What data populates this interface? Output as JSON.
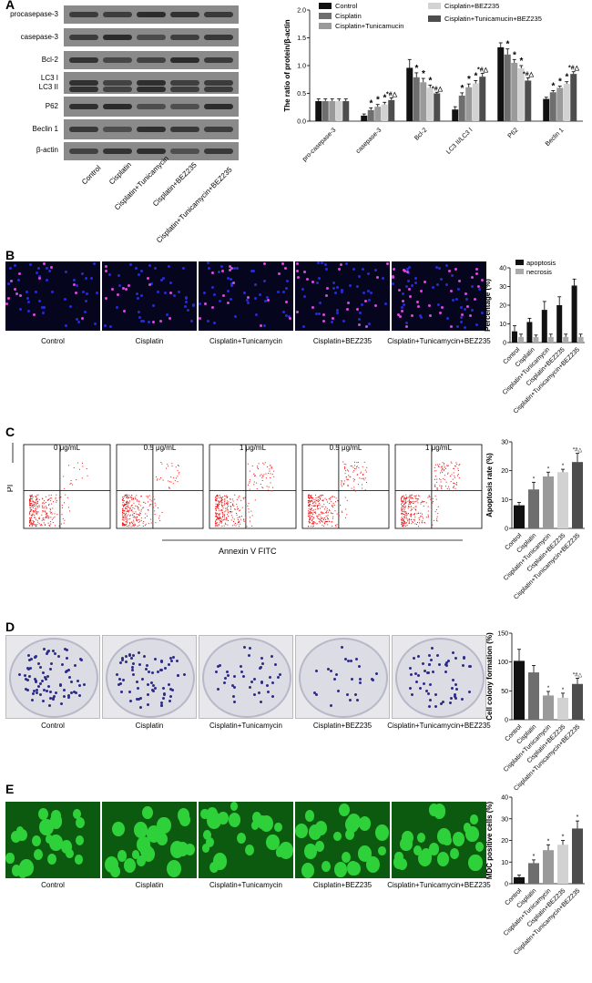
{
  "panelA": {
    "label": "A",
    "blot_rows": [
      "procasepase-3",
      "casepase-3",
      "Bcl-2",
      "LC3 I",
      "LC3 II",
      "P62",
      "Beclin 1",
      "β-actin"
    ],
    "blot_lanes": [
      "Control",
      "Cisplatin",
      "Cisplatin+Tunicamycin",
      "Cisplatin+BEZ235",
      "Cisplatin+Tunicamycin+BEZ235"
    ],
    "chart": {
      "ylabel": "The ratio of protein/β-actin",
      "yticks": [
        "0.0",
        "0.5",
        "1.0",
        "1.5",
        "2.0"
      ],
      "categories": [
        "pro-casepase-3",
        "casepase-3",
        "Bcl-2",
        "LC3 II/LC3 I",
        "P62",
        "Beclin 1"
      ],
      "legend": [
        "Control",
        "Cisplatin",
        "Cisplatin+Tunicamucin",
        "Cisplatin+BEZ235",
        "Cisplatin+Tunicamucin+BEZ235"
      ]
    }
  },
  "panelB": {
    "label": "B",
    "captions": [
      "Control",
      "Cisplatin",
      "Cisplatin+Tunicamycin",
      "Cisplatin+BEZ235",
      "Cisplatin+Tunicamycin+BEZ235"
    ],
    "chart": {
      "ylabel": "Percentage (%)",
      "yticks": [
        "0",
        "10",
        "20",
        "30",
        "40"
      ],
      "legend": [
        "apoptosis",
        "necrosis"
      ],
      "categories": [
        "Control",
        "Cisplatin",
        "Cisplatin+Tunicamycin",
        "Cisplatin+BEZ235",
        "Cisplatin+Tunicamycin+BEZ235"
      ]
    }
  },
  "panelC": {
    "label": "C",
    "doses": [
      "0 μg/mL",
      "0.5 μg/mL",
      "1 μg/mL",
      "0.5 μg/mL",
      "1 μg/mL"
    ],
    "yaxis": "PI",
    "xaxis": "Annexin V FITC",
    "chart": {
      "ylabel": "Apoptosis rate (%)",
      "yticks": [
        "0",
        "10",
        "20",
        "30"
      ],
      "categories": [
        "Control",
        "Cisplatin",
        "Cisplatin+Tunicamycin",
        "Cisplatin+BEZ235",
        "Cisplatin+Tunicamycin+BEZ235"
      ]
    }
  },
  "panelD": {
    "label": "D",
    "captions": [
      "Control",
      "Cisplatin",
      "Cisplatin+Tunicamycin",
      "Cisplatin+BEZ235",
      "Cisplatin+Tunicamycin+BEZ235"
    ],
    "chart": {
      "ylabel": "Cell colony formation (%)",
      "yticks": [
        "0",
        "50",
        "100",
        "150"
      ],
      "categories": [
        "Control",
        "Cisplatin",
        "Cisplatin+Tunicamycin",
        "Cisplatin+BEZ235",
        "Cisplatin+Tunicamycin+BEZ235"
      ]
    }
  },
  "panelE": {
    "label": "E",
    "captions": [
      "Control",
      "Cisplatin",
      "Cisplatin+Tunicamycin",
      "Cisplatin+BEZ235",
      "Cisplatin+Tunicamycin+BEZ235"
    ],
    "chart": {
      "ylabel": "MDC positive cells (%)",
      "yticks": [
        "0",
        "10",
        "20",
        "30",
        "40"
      ],
      "categories": [
        "Control",
        "Cisplatin",
        "Cisplatin+Tunicamycin",
        "Cisplatin+BEZ235",
        "Cisplatin+Tunicamycin+BEZ235"
      ]
    }
  },
  "colors": {
    "c1": "#111111",
    "c2": "#6e6e6e",
    "c3": "#9a9a9a",
    "c4": "#d2d2d2",
    "c5": "#4d4d4d"
  },
  "chart_data": [
    {
      "type": "bar",
      "categories": [
        "pro-casepase-3",
        "casepase-3",
        "Bcl-2",
        "LC3 II/LC3 I",
        "P62",
        "Beclin 1"
      ],
      "series": [
        {
          "name": "Control",
          "values": [
            0.36,
            0.1,
            0.96,
            0.21,
            1.33,
            0.4
          ],
          "errors": [
            0.04,
            0.03,
            0.15,
            0.05,
            0.08,
            0.03
          ]
        },
        {
          "name": "Cisplatin",
          "values": [
            0.36,
            0.2,
            0.79,
            0.46,
            1.2,
            0.52
          ],
          "errors": [
            0.04,
            0.04,
            0.08,
            0.05,
            0.1,
            0.03
          ]
        },
        {
          "name": "Cisplatin+Tunicamucin",
          "values": [
            0.36,
            0.26,
            0.7,
            0.61,
            1.05,
            0.6
          ],
          "errors": [
            0.04,
            0.04,
            0.07,
            0.06,
            0.06,
            0.03
          ]
        },
        {
          "name": "Cisplatin+BEZ235",
          "values": [
            0.36,
            0.3,
            0.6,
            0.68,
            0.95,
            0.67
          ],
          "errors": [
            0.04,
            0.04,
            0.05,
            0.05,
            0.05,
            0.04
          ]
        },
        {
          "name": "Cisplatin+Tunicamucin+BEZ235",
          "values": [
            0.36,
            0.38,
            0.5,
            0.8,
            0.73,
            0.85
          ],
          "errors": [
            0.04,
            0.04,
            0.02,
            0.06,
            0.05,
            0.04
          ]
        }
      ],
      "annotations": [
        [
          "",
          "",
          "",
          "",
          ""
        ],
        [
          "",
          "*",
          "*",
          "*",
          "*#△"
        ],
        [
          "",
          "*",
          "*",
          "*",
          "*#△"
        ],
        [
          "",
          "*",
          "*",
          "*",
          "*#△"
        ],
        [
          "",
          "*",
          "*",
          "*",
          "*#△"
        ],
        [
          "",
          "*",
          "*",
          "*",
          "*#△"
        ]
      ],
      "ylabel": "The ratio of protein/β-actin",
      "ylim": [
        0,
        2.0
      ],
      "legend": "top"
    },
    {
      "type": "bar",
      "categories": [
        "Control",
        "Cisplatin",
        "Cisplatin+Tunicamycin",
        "Cisplatin+BEZ235",
        "Cisplatin+Tunicamycin+BEZ235"
      ],
      "series": [
        {
          "name": "apoptosis",
          "values": [
            6,
            11,
            17.5,
            20,
            30.5
          ],
          "errors": [
            3,
            2,
            4.5,
            4.5,
            3.5
          ]
        },
        {
          "name": "necrosis",
          "values": [
            3,
            3,
            3,
            3,
            3
          ],
          "errors": [
            1.5,
            1,
            1.5,
            1.5,
            1.5
          ]
        }
      ],
      "ylabel": "Percentage (%)",
      "ylim": [
        0,
        40
      ],
      "legend": "top"
    },
    {
      "type": "bar",
      "categories": [
        "Control",
        "Cisplatin",
        "Cisplatin+Tunicamycin",
        "Cisplatin+BEZ235",
        "Cisplatin+Tunicamycin+BEZ235"
      ],
      "values": [
        8,
        13.5,
        18,
        19.5,
        23
      ],
      "errors": [
        1,
        2.5,
        1.5,
        1,
        3
      ],
      "annotations": [
        "",
        "*",
        "*",
        "*",
        "*#△"
      ],
      "ylabel": "Apoptosis rate (%)",
      "ylim": [
        0,
        30
      ]
    },
    {
      "type": "bar",
      "categories": [
        "Control",
        "Cisplatin",
        "Cisplatin+Tunicamycin",
        "Cisplatin+BEZ235",
        "Cisplatin+Tunicamycin+BEZ235"
      ],
      "values": [
        102,
        82,
        42,
        38,
        62
      ],
      "errors": [
        20,
        12,
        7,
        8,
        10
      ],
      "annotations": [
        "",
        "",
        "*",
        "*",
        "*#△"
      ],
      "ylabel": "Cell colony formation (%)",
      "ylim": [
        0,
        150
      ]
    },
    {
      "type": "bar",
      "categories": [
        "Control",
        "Cisplatin",
        "Cisplatin+Tunicamycin",
        "Cisplatin+BEZ235",
        "Cisplatin+Tunicamycin+BEZ235"
      ],
      "values": [
        3,
        9.5,
        15.5,
        18,
        25.5
      ],
      "errors": [
        1,
        1.5,
        2.5,
        2,
        3.5
      ],
      "annotations": [
        "",
        "*",
        "*",
        "*",
        "*"
      ],
      "ylabel": "MDC positive cells (%)",
      "ylim": [
        0,
        40
      ]
    }
  ]
}
